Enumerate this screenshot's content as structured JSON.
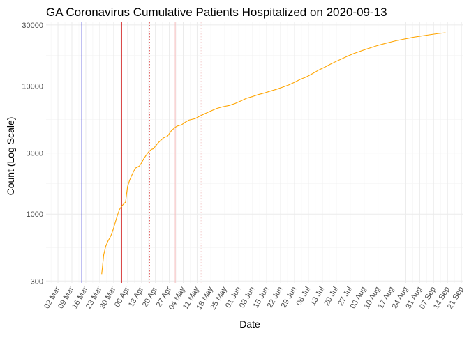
{
  "chart_data": {
    "type": "line",
    "title": "GA Coronavirus Cumulative Patients Hospitalized on 2020-09-13",
    "xlabel": "Date",
    "ylabel": "Count (Log Scale)",
    "y_scale": "log10",
    "ylim": [
      290,
      31500
    ],
    "xlim": [
      "2020-02-25",
      "2020-09-22"
    ],
    "grid": true,
    "y_ticks": [
      300,
      1000,
      3000,
      10000,
      30000
    ],
    "y_tick_labels": [
      "300",
      "1000",
      "3000",
      "10000",
      "30000"
    ],
    "x_ticks": [
      "2020-03-02",
      "2020-03-09",
      "2020-03-16",
      "2020-03-23",
      "2020-03-30",
      "2020-04-06",
      "2020-04-13",
      "2020-04-20",
      "2020-04-27",
      "2020-05-04",
      "2020-05-11",
      "2020-05-18",
      "2020-05-25",
      "2020-06-01",
      "2020-06-08",
      "2020-06-15",
      "2020-06-22",
      "2020-06-29",
      "2020-07-06",
      "2020-07-13",
      "2020-07-20",
      "2020-07-27",
      "2020-08-03",
      "2020-08-10",
      "2020-08-17",
      "2020-08-24",
      "2020-08-31",
      "2020-09-07",
      "2020-09-14",
      "2020-09-21"
    ],
    "x_tick_labels": [
      "02 Mar",
      "09 Mar",
      "16 Mar",
      "23 Mar",
      "30 Mar",
      "06 Apr",
      "13 Apr",
      "20 Apr",
      "27 Apr",
      "04 May",
      "11 May",
      "18 May",
      "25 May",
      "01 Jun",
      "08 Jun",
      "15 Jun",
      "22 Jun",
      "29 Jun",
      "06 Jul",
      "13 Jul",
      "20 Jul",
      "27 Jul",
      "03 Aug",
      "10 Aug",
      "17 Aug",
      "24 Aug",
      "31 Aug",
      "07 Sep",
      "14 Sep",
      "21 Sep"
    ],
    "reference_lines": [
      {
        "x": "2020-03-14",
        "color": "#0000cc",
        "style": "solid"
      },
      {
        "x": "2020-04-03",
        "color": "#cc0000",
        "style": "solid"
      },
      {
        "x": "2020-04-17",
        "color": "#cc0000",
        "style": "dotted"
      },
      {
        "x": "2020-04-30",
        "color": "#f4b8b8",
        "style": "solid"
      },
      {
        "x": "2020-05-13",
        "color": "#f4cccc",
        "style": "dotted"
      }
    ],
    "series": [
      {
        "color": "#ffa500",
        "points": [
          [
            "2020-03-24",
            340
          ],
          [
            "2020-03-25",
            480
          ],
          [
            "2020-03-26",
            560
          ],
          [
            "2020-03-27",
            610
          ],
          [
            "2020-03-28",
            650
          ],
          [
            "2020-03-29",
            700
          ],
          [
            "2020-03-30",
            780
          ],
          [
            "2020-03-31",
            880
          ],
          [
            "2020-04-01",
            990
          ],
          [
            "2020-04-02",
            1090
          ],
          [
            "2020-04-03",
            1150
          ],
          [
            "2020-04-04",
            1200
          ],
          [
            "2020-04-05",
            1240
          ],
          [
            "2020-04-06",
            1640
          ],
          [
            "2020-04-07",
            1830
          ],
          [
            "2020-04-08",
            1990
          ],
          [
            "2020-04-09",
            2150
          ],
          [
            "2020-04-10",
            2290
          ],
          [
            "2020-04-11",
            2330
          ],
          [
            "2020-04-12",
            2380
          ],
          [
            "2020-04-13",
            2510
          ],
          [
            "2020-04-14",
            2680
          ],
          [
            "2020-04-15",
            2830
          ],
          [
            "2020-04-16",
            2980
          ],
          [
            "2020-04-17",
            3110
          ],
          [
            "2020-04-18",
            3200
          ],
          [
            "2020-04-19",
            3240
          ],
          [
            "2020-04-20",
            3390
          ],
          [
            "2020-04-21",
            3540
          ],
          [
            "2020-04-22",
            3680
          ],
          [
            "2020-04-23",
            3800
          ],
          [
            "2020-04-24",
            3930
          ],
          [
            "2020-04-25",
            4000
          ],
          [
            "2020-04-26",
            4040
          ],
          [
            "2020-04-27",
            4250
          ],
          [
            "2020-04-28",
            4470
          ],
          [
            "2020-04-29",
            4620
          ],
          [
            "2020-04-30",
            4770
          ],
          [
            "2020-05-01",
            4870
          ],
          [
            "2020-05-02",
            4930
          ],
          [
            "2020-05-03",
            4960
          ],
          [
            "2020-05-05",
            5220
          ],
          [
            "2020-05-07",
            5430
          ],
          [
            "2020-05-10",
            5570
          ],
          [
            "2020-05-12",
            5790
          ],
          [
            "2020-05-15",
            6100
          ],
          [
            "2020-05-18",
            6400
          ],
          [
            "2020-05-21",
            6700
          ],
          [
            "2020-05-24",
            6900
          ],
          [
            "2020-05-27",
            7050
          ],
          [
            "2020-05-30",
            7300
          ],
          [
            "2020-06-02",
            7650
          ],
          [
            "2020-06-05",
            8050
          ],
          [
            "2020-06-08",
            8300
          ],
          [
            "2020-06-11",
            8600
          ],
          [
            "2020-06-14",
            8850
          ],
          [
            "2020-06-17",
            9150
          ],
          [
            "2020-06-20",
            9450
          ],
          [
            "2020-06-23",
            9800
          ],
          [
            "2020-06-26",
            10200
          ],
          [
            "2020-06-29",
            10700
          ],
          [
            "2020-07-02",
            11300
          ],
          [
            "2020-07-05",
            11800
          ],
          [
            "2020-07-08",
            12500
          ],
          [
            "2020-07-11",
            13300
          ],
          [
            "2020-07-14",
            14000
          ],
          [
            "2020-07-17",
            14800
          ],
          [
            "2020-07-20",
            15600
          ],
          [
            "2020-07-23",
            16400
          ],
          [
            "2020-07-26",
            17200
          ],
          [
            "2020-07-29",
            18000
          ],
          [
            "2020-08-01",
            18700
          ],
          [
            "2020-08-04",
            19400
          ],
          [
            "2020-08-07",
            20100
          ],
          [
            "2020-08-10",
            20800
          ],
          [
            "2020-08-13",
            21400
          ],
          [
            "2020-08-16",
            22000
          ],
          [
            "2020-08-19",
            22600
          ],
          [
            "2020-08-22",
            23100
          ],
          [
            "2020-08-25",
            23600
          ],
          [
            "2020-08-28",
            24100
          ],
          [
            "2020-08-31",
            24500
          ],
          [
            "2020-09-03",
            24900
          ],
          [
            "2020-09-06",
            25300
          ],
          [
            "2020-09-09",
            25700
          ],
          [
            "2020-09-13",
            26100
          ]
        ]
      }
    ]
  }
}
